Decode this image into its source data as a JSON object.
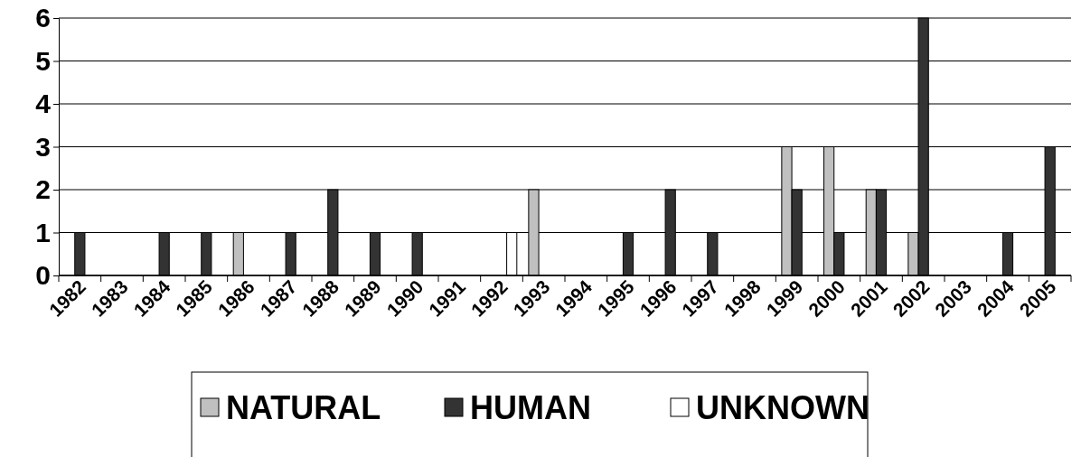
{
  "chart_data": {
    "type": "bar",
    "categories": [
      "1982",
      "1983",
      "1984",
      "1985",
      "1986",
      "1987",
      "1988",
      "1989",
      "1990",
      "1991",
      "1992",
      "1993",
      "1994",
      "1995",
      "1996",
      "1997",
      "1998",
      "1999",
      "2000",
      "2001",
      "2002",
      "2003",
      "2004",
      "2005"
    ],
    "series": [
      {
        "name": "NATURAL",
        "color": "#c0c0c0",
        "values": [
          0,
          0,
          0,
          0,
          1,
          0,
          0,
          0,
          0,
          0,
          0,
          2,
          0,
          0,
          0,
          0,
          0,
          3,
          3,
          2,
          1,
          0,
          0,
          0
        ]
      },
      {
        "name": "HUMAN",
        "color": "#333333",
        "values": [
          1,
          0,
          1,
          1,
          0,
          1,
          2,
          1,
          1,
          0,
          0,
          0,
          0,
          1,
          2,
          1,
          0,
          2,
          1,
          2,
          6,
          0,
          1,
          3
        ]
      },
      {
        "name": "UNKNOWN",
        "color": "#ffffff",
        "values": [
          0,
          0,
          0,
          0,
          0,
          0,
          0,
          0,
          0,
          0,
          1,
          0,
          0,
          0,
          0,
          0,
          0,
          0,
          0,
          0,
          0,
          0,
          0,
          0
        ]
      }
    ],
    "ylim": [
      0,
      6
    ],
    "yticks": [
      0,
      1,
      2,
      3,
      4,
      5,
      6
    ],
    "grid": "y",
    "legend": "bottom"
  }
}
